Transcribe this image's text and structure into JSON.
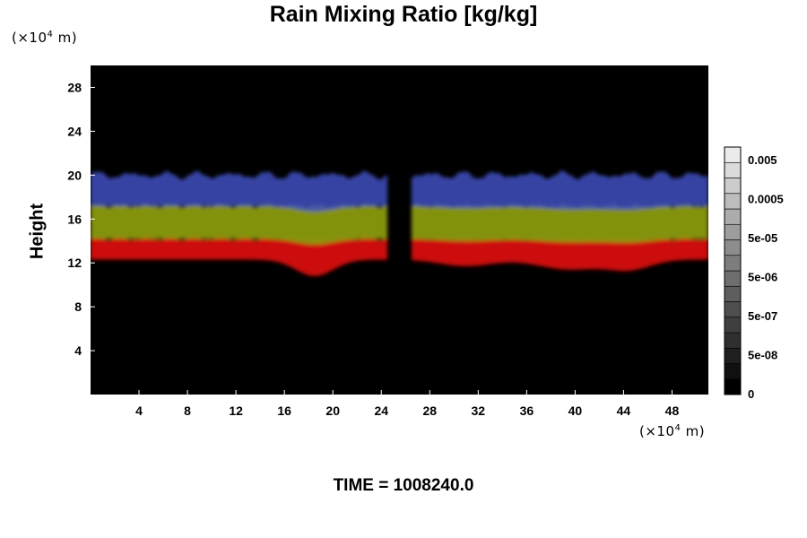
{
  "chart_data": {
    "type": "heatmap",
    "title": "Rain Mixing Ratio [kg/kg]",
    "ylabel": "Height",
    "xlabel": "",
    "x_unit": "(×10⁴ m)",
    "y_unit": "(×10⁴ m)",
    "xlim": [
      0,
      51
    ],
    "ylim": [
      0,
      30
    ],
    "x_ticks": [
      4,
      8,
      12,
      16,
      20,
      24,
      28,
      32,
      36,
      40,
      44,
      48
    ],
    "y_ticks": [
      4,
      8,
      12,
      16,
      20,
      24,
      28
    ],
    "colorbar": {
      "tick_labels": [
        "0.005",
        "0.0005",
        "5e-05",
        "5e-06",
        "5e-07",
        "5e-08",
        "0"
      ],
      "levels": 16
    },
    "background_color": "#000000",
    "layers": [
      {
        "color": "#d81010",
        "y_bottom": 12.3,
        "y_top": 14.2
      },
      {
        "color": "#8a9a10",
        "y_bottom": 14.2,
        "y_top": 17.2
      },
      {
        "color": "#4050c0",
        "y_bottom": 17.2,
        "y_top": 20.0
      }
    ],
    "gap_x_range": [
      24.5,
      26.5
    ]
  },
  "footer": {
    "time_label": "TIME = 1008240.0"
  }
}
